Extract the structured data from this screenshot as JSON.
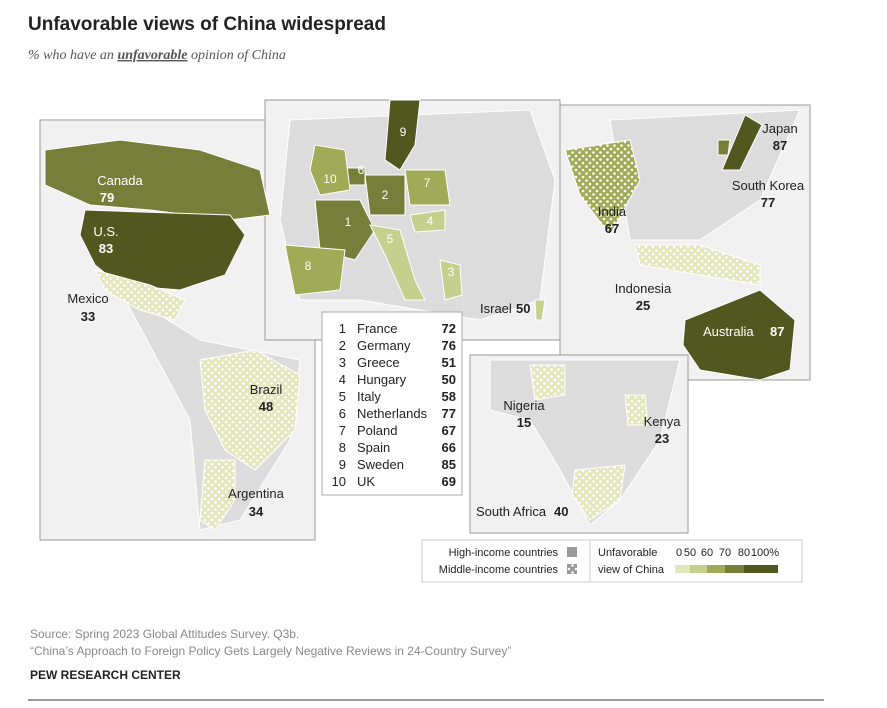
{
  "header": {
    "title": "Unfavorable views of China widespread",
    "subtitle": [
      "% who have an",
      "unfavorable",
      "opinion of China"
    ]
  },
  "countries": [
    {
      "name": "Canada",
      "value": 79,
      "group": "High-income countries"
    },
    {
      "name": "U.S.",
      "value": 83,
      "group": "High-income countries"
    },
    {
      "name": "Mexico",
      "value": 33,
      "group": "Middle-income countries"
    },
    {
      "name": "Brazil",
      "value": 48,
      "group": "Middle-income countries"
    },
    {
      "name": "Argentina",
      "value": 34,
      "group": "Middle-income countries"
    },
    {
      "name": "India",
      "value": 67,
      "group": "Middle-income countries"
    },
    {
      "name": "Japan",
      "value": 87,
      "group": "High-income countries"
    },
    {
      "name": "South Korea",
      "value": 77,
      "group": "High-income countries"
    },
    {
      "name": "Indonesia",
      "value": 25,
      "group": "Middle-income countries"
    },
    {
      "name": "Australia",
      "value": 87,
      "group": "High-income countries"
    },
    {
      "name": "Israel",
      "value": 50,
      "group": "High-income countries"
    },
    {
      "name": "Nigeria",
      "value": 15,
      "group": "Middle-income countries"
    },
    {
      "name": "Kenya",
      "value": 23,
      "group": "Middle-income countries"
    },
    {
      "name": "South Africa",
      "value": 40,
      "group": "Middle-income countries"
    }
  ],
  "europe": [
    {
      "key": 1,
      "name": "France",
      "value": 72
    },
    {
      "key": 2,
      "name": "Germany",
      "value": 76
    },
    {
      "key": 3,
      "name": "Greece",
      "value": 51
    },
    {
      "key": 4,
      "name": "Hungary",
      "value": 50
    },
    {
      "key": 5,
      "name": "Italy",
      "value": 58
    },
    {
      "key": 6,
      "name": "Netherlands",
      "value": 77
    },
    {
      "key": 7,
      "name": "Poland",
      "value": 67
    },
    {
      "key": 8,
      "name": "Spain",
      "value": 66
    },
    {
      "key": 9,
      "name": "Sweden",
      "value": 85
    },
    {
      "key": 10,
      "name": "UK",
      "value": 69
    }
  ],
  "legend": {
    "groups": [
      "High-income countries",
      "Middle-income countries"
    ],
    "scale_title": [
      "Unfavorable",
      "view of China"
    ],
    "ticks": [
      0,
      50,
      60,
      70,
      80,
      {
        "value": 100,
        "label": "100%"
      }
    ],
    "colors": [
      "#e3e7bd",
      "#c6d08e",
      "#a0ab58",
      "#767f39",
      "#50571f"
    ]
  },
  "footer": {
    "source": [
      "Source: Spring 2023 Global Attitudes Survey. Q3b.",
      "“China’s Approach to Foreign Policy Gets Largely Negative Reviews in 24-Country Survey”"
    ],
    "org": "PEW RESEARCH CENTER"
  }
}
